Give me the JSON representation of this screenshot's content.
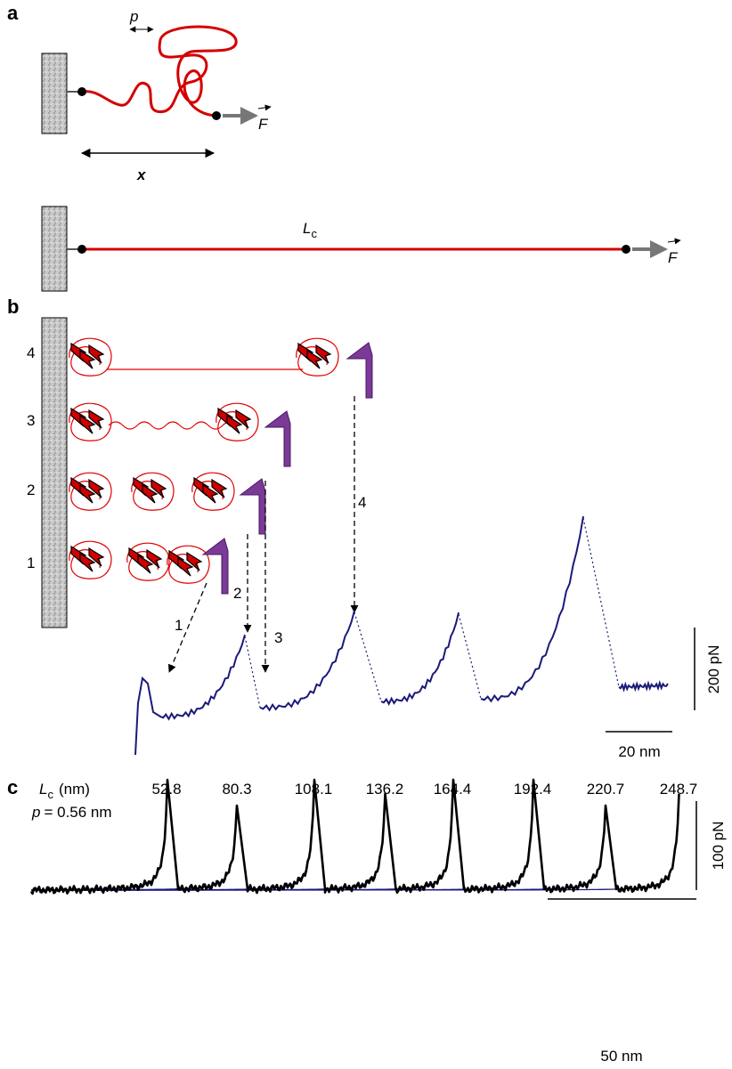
{
  "panel_a": {
    "label": "a",
    "persistence": "p",
    "force": "F",
    "extension": "x",
    "contour": {
      "main": "L",
      "sub": "c"
    },
    "force_stretched": "F"
  },
  "panel_b": {
    "label": "b",
    "states": [
      "4",
      "3",
      "2",
      "1"
    ],
    "arrows": [
      "1",
      "2",
      "3",
      "4"
    ],
    "force_scale": "200 pN",
    "distance_scale": "20 nm"
  },
  "panel_c": {
    "label": "c",
    "contour_header": {
      "main": "L",
      "sub": "c",
      "unit": "(nm)"
    },
    "persistence": {
      "symbol": "p",
      "text": "= 0.56 nm"
    },
    "contour_lengths": [
      52.8,
      80.3,
      108.1,
      136.2,
      164.4,
      192.4,
      220.7,
      248.7
    ],
    "force_scale": "100 pN",
    "distance_scale": "50 nm"
  }
}
